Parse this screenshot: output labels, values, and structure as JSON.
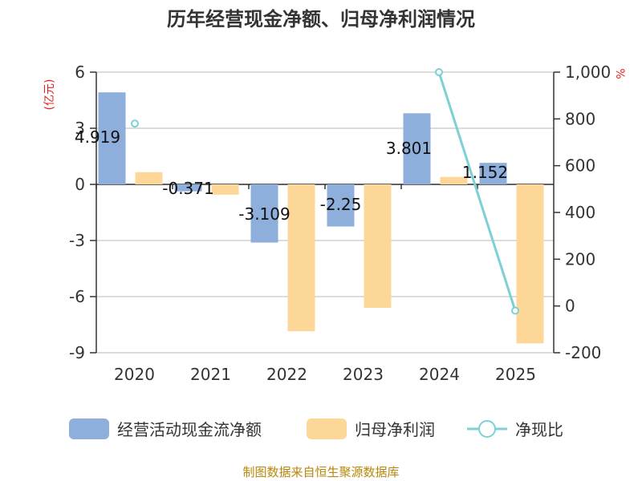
{
  "chart_data": {
    "type": "bar",
    "title": "历年经营现金净额、归母净利润情况",
    "categories": [
      "2020",
      "2021",
      "2022",
      "2023",
      "2024",
      "2025"
    ],
    "y_left": {
      "unit": "(亿元)",
      "ticks": [
        "6",
        "3",
        "0",
        "-3",
        "-6",
        "-9"
      ],
      "ylim": [
        -9,
        6
      ]
    },
    "y_right": {
      "unit": "%",
      "ticks": [
        "1,000",
        "800",
        "600",
        "400",
        "200",
        "0",
        "-200"
      ],
      "ylim": [
        -200,
        1000
      ]
    },
    "series": [
      {
        "name": "经营活动现金流净额",
        "type": "bar",
        "axis": "left",
        "color": "#8eaedb",
        "values": [
          4.919,
          -0.371,
          -3.109,
          -2.25,
          3.801,
          1.152
        ],
        "labels": [
          "4.919",
          "-0.371",
          "-3.109",
          "-2.25",
          "3.801",
          "1.152"
        ]
      },
      {
        "name": "归母净利润",
        "type": "bar",
        "axis": "left",
        "color": "#fdd797",
        "values": [
          0.65,
          -0.55,
          -7.85,
          -6.6,
          0.4,
          -8.5
        ]
      },
      {
        "name": "净现比",
        "type": "line",
        "axis": "right",
        "color": "#7dd0d4",
        "values": [
          null,
          null,
          null,
          null,
          1000,
          -20
        ]
      }
    ],
    "note_2020_ratio": 780,
    "grid": true
  },
  "legend": [
    "经营活动现金流净额",
    "归母净利润",
    "净现比"
  ],
  "source": "制图数据来自恒生聚源数据库"
}
